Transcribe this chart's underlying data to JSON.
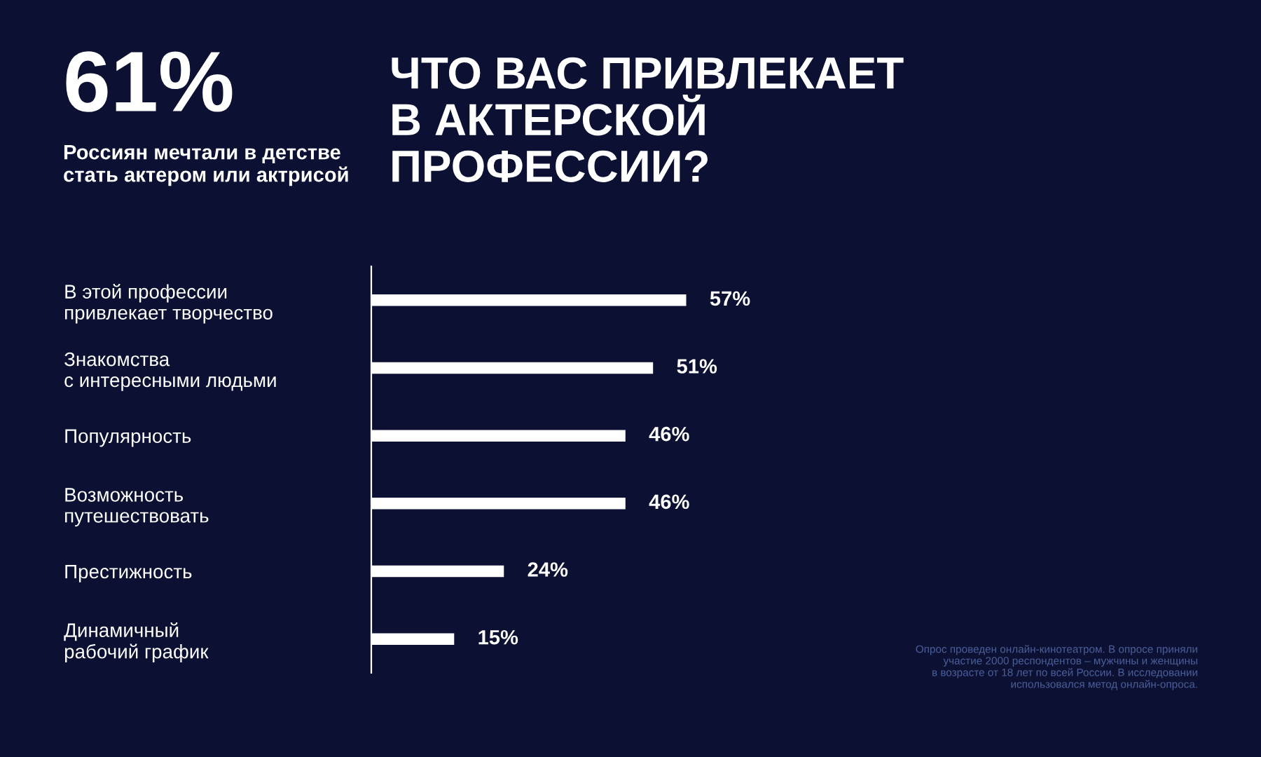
{
  "chart_data": {
    "type": "bar",
    "orientation": "horizontal",
    "title": "ЧТО ВАС ПРИВЛЕКАЕТ\nВ АКТЕРСКОЙ\nПРОФЕССИИ?",
    "categories": [
      "В этой профессии\nпривлекает творчество",
      "Знакомства\nс интересными людьми",
      "Популярность",
      "Возможность\nпутешествовать",
      "Престижность",
      "Динамичный\nрабочий график"
    ],
    "values": [
      57,
      51,
      46,
      46,
      24,
      15
    ],
    "value_labels": [
      "57%",
      "51%",
      "46%",
      "46%",
      "24%",
      "15%"
    ],
    "color": "#ffffff",
    "tick_labels": "y",
    "annotations": [
      "61%",
      "Россиян мечтали в детстве\nстать актером или актрисой",
      "Опрос проведен онлайн-кинотеатром. В опросе приняли\nучастие 2000 респондентов – мужчины и женщины\nв возрасте от 18 лет по всей России. В исследовании\nиспользовался метод онлайн-опроса."
    ]
  }
}
